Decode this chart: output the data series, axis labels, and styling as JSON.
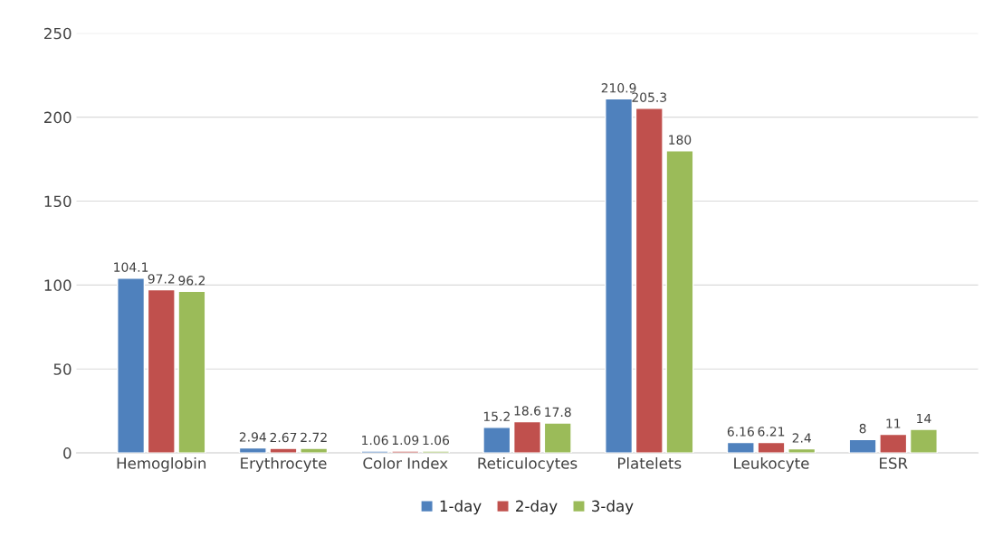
{
  "chart_data": {
    "type": "bar",
    "categories": [
      "Hemoglobin",
      "Erythrocyte",
      "Color Index",
      "Reticulocytes",
      "Platelets",
      "Leukocyte",
      "ESR"
    ],
    "series": [
      {
        "name": "1-day",
        "color": "#4f81bd",
        "values": [
          104.1,
          2.94,
          1.06,
          15.2,
          210.9,
          6.16,
          8
        ]
      },
      {
        "name": "2-day",
        "color": "#c0504d",
        "values": [
          97.2,
          2.67,
          1.09,
          18.6,
          205.3,
          6.21,
          11
        ]
      },
      {
        "name": "3-day",
        "color": "#9bbb59",
        "values": [
          96.2,
          2.72,
          1.06,
          17.8,
          180,
          2.4,
          14
        ]
      }
    ],
    "ylim": [
      0,
      250
    ],
    "yticks": [
      0,
      50,
      100,
      150,
      200,
      250
    ],
    "grid": "y",
    "legend": "bottom",
    "data_labels": true
  }
}
